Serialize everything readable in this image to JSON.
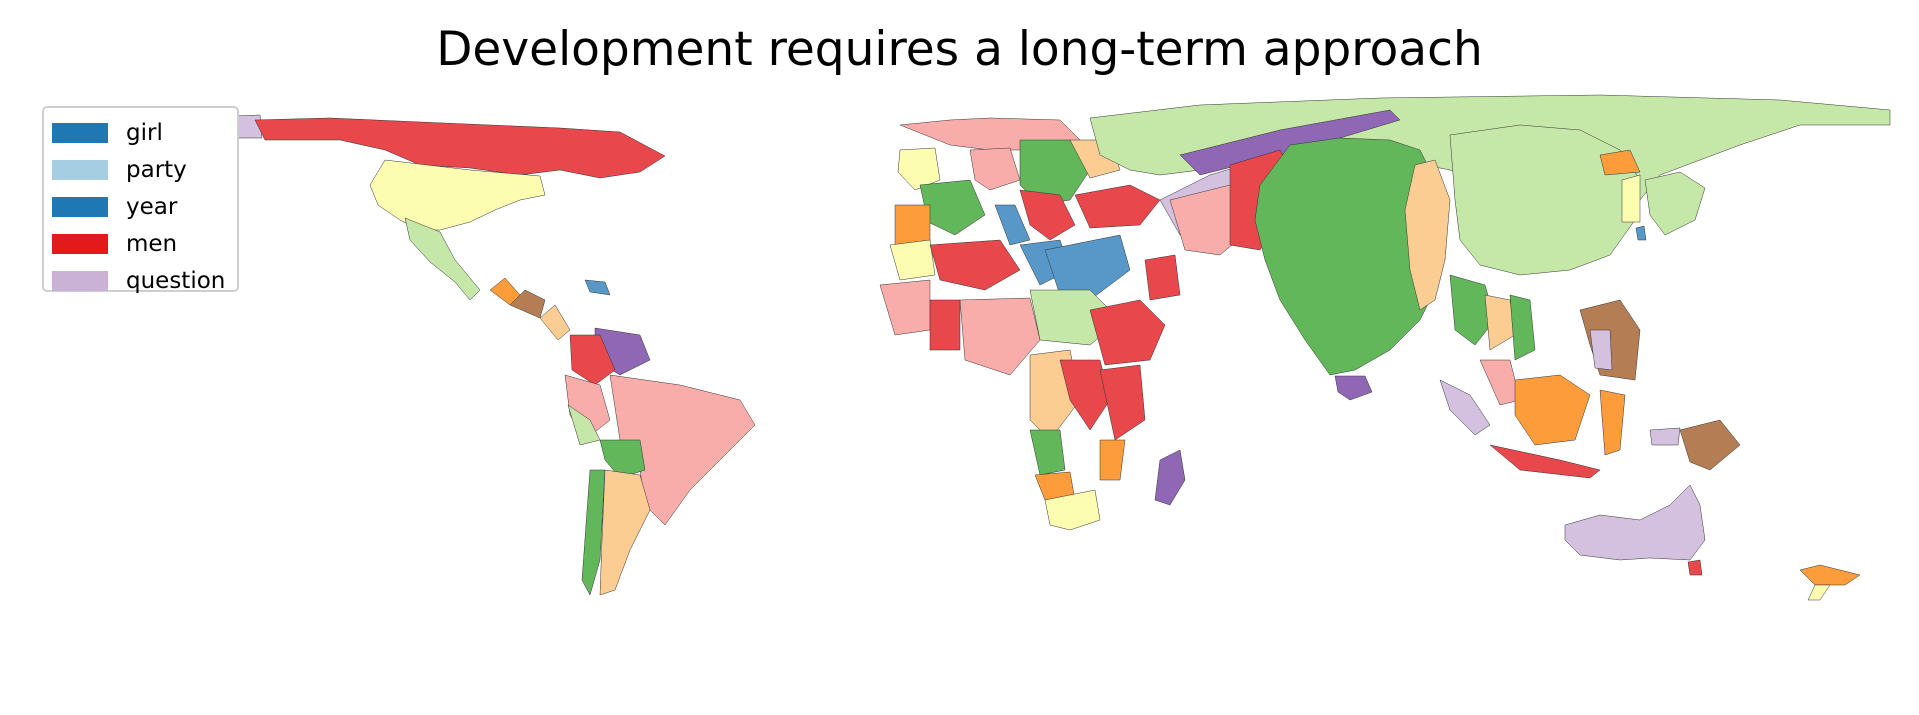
{
  "title": "Development requires a long-term approach",
  "legend": [
    {
      "label": "girl",
      "color": "#1f78b4"
    },
    {
      "label": "party",
      "color": "#a6cee3"
    },
    {
      "label": "year",
      "color": "#1f78b4"
    },
    {
      "label": "men",
      "color": "#e31a1c"
    },
    {
      "label": "question",
      "color": "#cab2d6"
    }
  ],
  "palette": {
    "red": "#e8474b",
    "pink": "#f9adab",
    "light_green": "#c5e7a7",
    "green": "#62b75b",
    "peach": "#fbcd93",
    "orange": "#fd9c3a",
    "yellow": "#fdfdb1",
    "purple": "#8f67b4",
    "lavender": "#d4c0df",
    "blue": "#5798c8",
    "light_blue": "#a6cee3",
    "brown": "#b57d53"
  }
}
